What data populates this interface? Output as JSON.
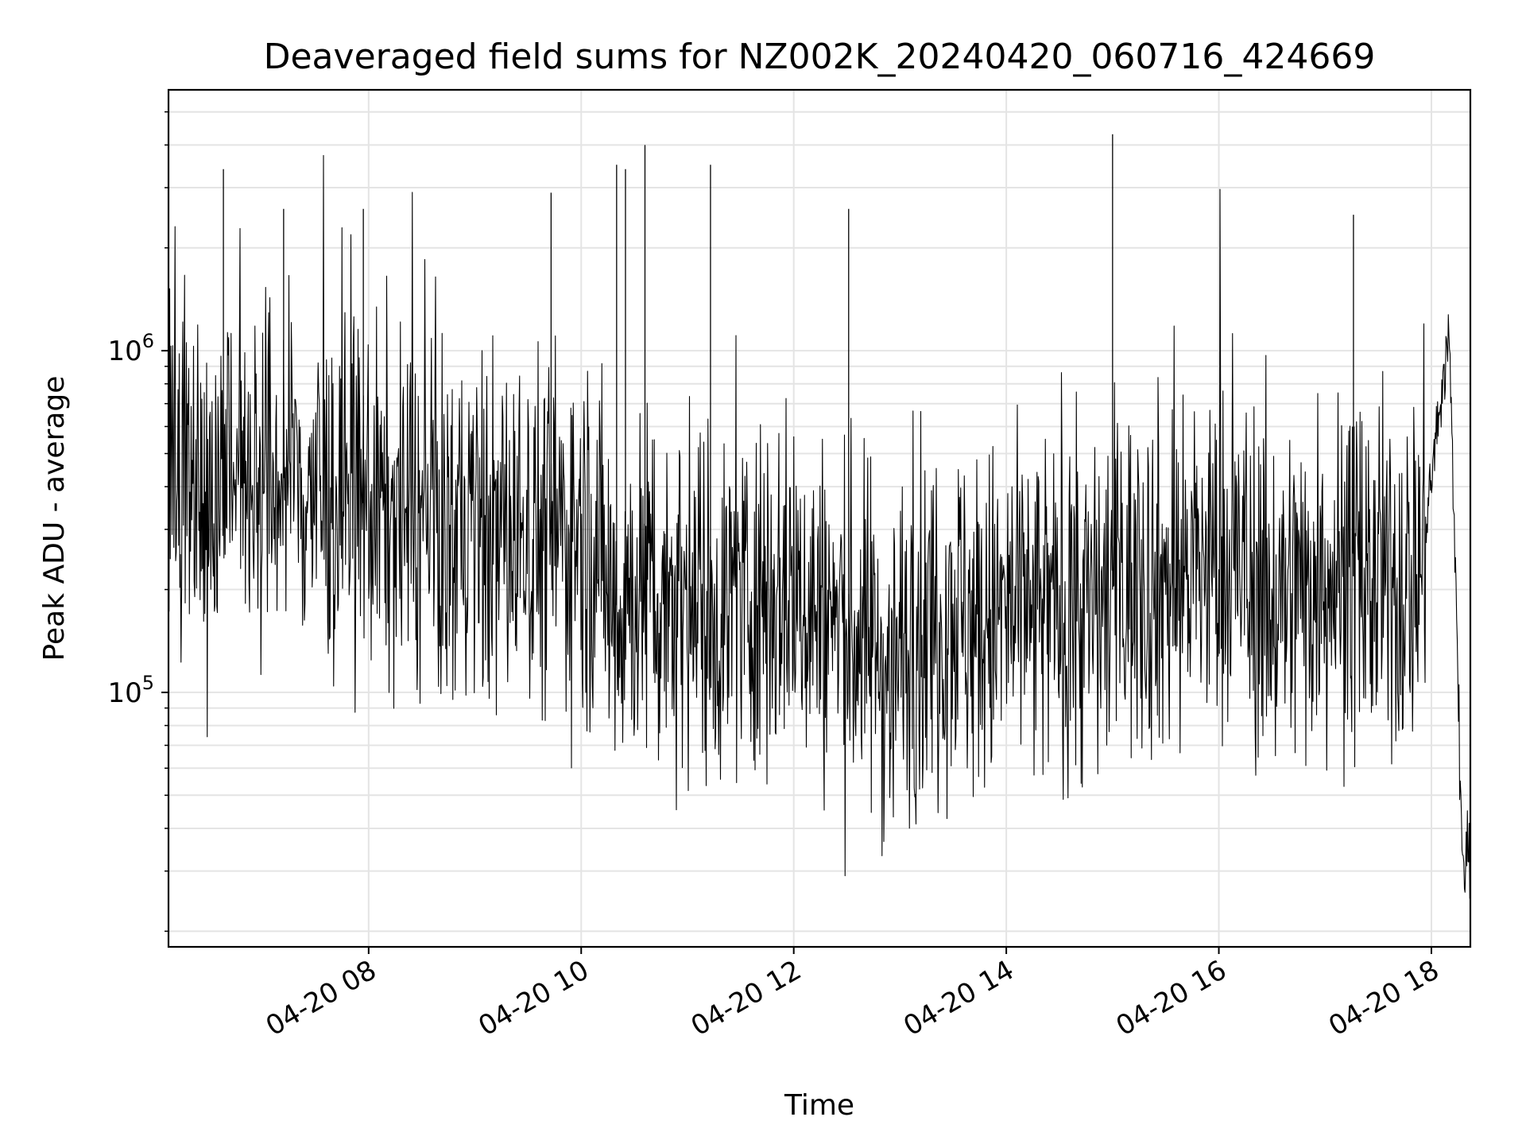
{
  "chart_data": {
    "type": "line",
    "title": "Deaveraged field sums for NZ002K_20240420_060716_424669",
    "xlabel": "Time",
    "ylabel": "Peak ADU - average",
    "y_scale": "log",
    "ylim": [
      18000,
      5800000
    ],
    "xlim": [
      "2024-04-20 06:07",
      "2024-04-20 18:22"
    ],
    "grid": {
      "major": true,
      "minor_y": true
    },
    "x_ticks": [
      {
        "label": "04-20 08",
        "time": "2024-04-20 08:00"
      },
      {
        "label": "04-20 10",
        "time": "2024-04-20 10:00"
      },
      {
        "label": "04-20 12",
        "time": "2024-04-20 12:00"
      },
      {
        "label": "04-20 14",
        "time": "2024-04-20 14:00"
      },
      {
        "label": "04-20 16",
        "time": "2024-04-20 16:00"
      },
      {
        "label": "04-20 18",
        "time": "2024-04-20 18:00"
      }
    ],
    "y_ticks": [
      {
        "base": "10",
        "exp": "5",
        "value": 100000
      },
      {
        "base": "10",
        "exp": "6",
        "value": 1000000
      }
    ],
    "line_color": "#000000",
    "series": [
      {
        "x": [
          "2024-04-20 06:07",
          "2024-04-20 06:15",
          "2024-04-20 06:22",
          "2024-04-20 06:30",
          "2024-04-20 06:37",
          "2024-04-20 06:45",
          "2024-04-20 07:00",
          "2024-04-20 07:15",
          "2024-04-20 07:30",
          "2024-04-20 07:45",
          "2024-04-20 08:00",
          "2024-04-20 08:15",
          "2024-04-20 08:30",
          "2024-04-20 08:45",
          "2024-04-20 09:00",
          "2024-04-20 09:15",
          "2024-04-20 09:30",
          "2024-04-20 09:45",
          "2024-04-20 10:00",
          "2024-04-20 10:10",
          "2024-04-20 10:20",
          "2024-04-20 10:30",
          "2024-04-20 10:45",
          "2024-04-20 11:00",
          "2024-04-20 11:15",
          "2024-04-20 11:30",
          "2024-04-20 11:45",
          "2024-04-20 12:00",
          "2024-04-20 12:15",
          "2024-04-20 12:30",
          "2024-04-20 12:45",
          "2024-04-20 12:55",
          "2024-04-20 13:05",
          "2024-04-20 13:15",
          "2024-04-20 13:30",
          "2024-04-20 13:45",
          "2024-04-20 14:00",
          "2024-04-20 14:15",
          "2024-04-20 14:30",
          "2024-04-20 14:45",
          "2024-04-20 15:00",
          "2024-04-20 15:15",
          "2024-04-20 15:30",
          "2024-04-20 15:45",
          "2024-04-20 16:00",
          "2024-04-20 16:15",
          "2024-04-20 16:30",
          "2024-04-20 16:45",
          "2024-04-20 17:00",
          "2024-04-20 17:15",
          "2024-04-20 17:30",
          "2024-04-20 17:45",
          "2024-04-20 17:55",
          "2024-04-20 18:05",
          "2024-04-20 18:10",
          "2024-04-20 18:14",
          "2024-04-20 18:17",
          "2024-04-20 18:22"
        ],
        "y": [
          420000,
          380000,
          450000,
          300000,
          520000,
          480000,
          400000,
          430000,
          380000,
          350000,
          360000,
          330000,
          300000,
          290000,
          310000,
          280000,
          300000,
          290000,
          300000,
          250000,
          180000,
          200000,
          190000,
          200000,
          170000,
          190000,
          200000,
          200000,
          170000,
          150000,
          140000,
          110000,
          150000,
          160000,
          180000,
          150000,
          170000,
          160000,
          180000,
          170000,
          200000,
          220000,
          210000,
          230000,
          240000,
          220000,
          180000,
          200000,
          230000,
          220000,
          200000,
          210000,
          250000,
          700000,
          1100000,
          200000,
          35000,
          30000
        ]
      }
    ],
    "spikes": [
      {
        "x": "2024-04-20 06:38",
        "y": 3400000
      },
      {
        "x": "2024-04-20 07:12",
        "y": 2600000
      },
      {
        "x": "2024-04-20 07:57",
        "y": 2600000
      },
      {
        "x": "2024-04-20 09:43",
        "y": 2900000
      },
      {
        "x": "2024-04-20 10:20",
        "y": 3500000
      },
      {
        "x": "2024-04-20 10:25",
        "y": 3400000
      },
      {
        "x": "2024-04-20 10:36",
        "y": 4000000
      },
      {
        "x": "2024-04-20 11:13",
        "y": 3500000
      },
      {
        "x": "2024-04-20 12:31",
        "y": 2600000
      },
      {
        "x": "2024-04-20 15:00",
        "y": 4300000
      },
      {
        "x": "2024-04-20 17:16",
        "y": 2500000
      }
    ]
  }
}
